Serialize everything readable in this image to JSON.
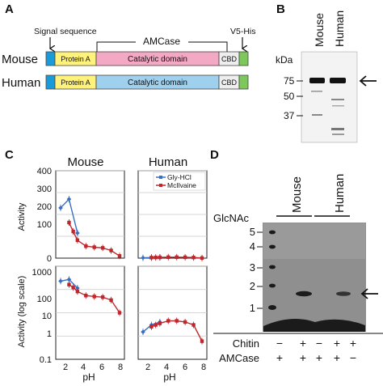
{
  "panel_labels": {
    "a": "A",
    "b": "B",
    "c": "C",
    "d": "D"
  },
  "panel_a": {
    "annotations": {
      "signal": "Signal sequence",
      "amcase": "AMCase",
      "tag": "V5-His"
    },
    "rows": [
      {
        "species": "Mouse",
        "domains": [
          "Protein A",
          "Catalytic domain",
          "CBD"
        ],
        "catalytic_color": "#f3a9c3"
      },
      {
        "species": "Human",
        "domains": [
          "Protein A",
          "Catalytic domain",
          "CBD"
        ],
        "catalytic_color": "#9fd0ee"
      }
    ],
    "colors": {
      "signal": "#1a9ad6",
      "protein_a": "#fff27a",
      "cbd": "#eeeeee",
      "tag": "#7cc85a"
    }
  },
  "panel_b": {
    "lanes": [
      "Mouse",
      "Human"
    ],
    "unit": "kDa",
    "markers": [
      "75",
      "50",
      "37"
    ],
    "arrow_at": "75"
  },
  "panel_c": {
    "columns": [
      "Mouse",
      "Human"
    ],
    "ylabel_top": "Activity",
    "ylabel_bottom": "Activity (log scale)",
    "xlabel": "pH",
    "legend": [
      "Gly-HCl",
      "McIlvaine"
    ],
    "top_yticks": [
      "0",
      "100",
      "200",
      "300",
      "400"
    ],
    "bottom_yticks": [
      "0.1",
      "1",
      "10",
      "100",
      "1000"
    ],
    "xticks": [
      "2",
      "4",
      "6",
      "8"
    ],
    "colors": {
      "gly": "#3a6fc4",
      "mcil": "#c0272d"
    }
  },
  "chart_data": [
    {
      "type": "line",
      "title": "Mouse",
      "xlabel": "pH",
      "ylabel": "Activity",
      "xlim": [
        1,
        8
      ],
      "ylim": [
        0,
        400
      ],
      "grid": true,
      "series": [
        {
          "name": "Gly-HCl",
          "x": [
            1,
            2,
            3
          ],
          "y": [
            230,
            270,
            115
          ]
        },
        {
          "name": "McIlvaine",
          "x": [
            2,
            2.5,
            3,
            4,
            5,
            6,
            7,
            8
          ],
          "y": [
            163,
            122,
            82,
            55,
            50,
            47,
            35,
            10
          ]
        }
      ]
    },
    {
      "type": "line",
      "title": "Human",
      "xlabel": "pH",
      "ylabel": "Activity",
      "xlim": [
        1,
        8
      ],
      "ylim": [
        0,
        400
      ],
      "grid": true,
      "legend": "top-right",
      "series": [
        {
          "name": "Gly-HCl",
          "x": [
            1,
            2,
            3
          ],
          "y": [
            1.5,
            3,
            4
          ]
        },
        {
          "name": "McIlvaine",
          "x": [
            2,
            2.5,
            3,
            4,
            5,
            6,
            7,
            8
          ],
          "y": [
            2.5,
            3,
            3.5,
            4.5,
            4.5,
            4,
            3,
            0.6
          ]
        }
      ]
    },
    {
      "type": "line",
      "title": "Mouse",
      "xlabel": "pH",
      "ylabel": "Activity (log scale)",
      "xlim": [
        1,
        8
      ],
      "ylim": [
        0.1,
        1000
      ],
      "log_y": true,
      "grid": true,
      "series": [
        {
          "name": "Gly-HCl",
          "x": [
            1,
            2,
            3
          ],
          "y": [
            230,
            270,
            115
          ]
        },
        {
          "name": "McIlvaine",
          "x": [
            2,
            2.5,
            3,
            4,
            5,
            6,
            7,
            8
          ],
          "y": [
            163,
            122,
            82,
            55,
            50,
            47,
            35,
            10
          ]
        }
      ]
    },
    {
      "type": "line",
      "title": "Human",
      "xlabel": "pH",
      "ylabel": "Activity (log scale)",
      "xlim": [
        1,
        8
      ],
      "ylim": [
        0.1,
        1000
      ],
      "log_y": true,
      "grid": true,
      "series": [
        {
          "name": "Gly-HCl",
          "x": [
            1,
            2,
            3
          ],
          "y": [
            1.5,
            3,
            4
          ]
        },
        {
          "name": "McIlvaine",
          "x": [
            2,
            2.5,
            3,
            4,
            5,
            6,
            7,
            8
          ],
          "y": [
            2.5,
            3,
            3.5,
            4.5,
            4.5,
            4,
            3,
            0.6
          ]
        }
      ]
    }
  ],
  "panel_d": {
    "lanes": [
      "Mouse",
      "Human"
    ],
    "unit": "GlcNAc",
    "markers": [
      "5",
      "4",
      "3",
      "2",
      "1"
    ],
    "row_labels": [
      "Chitin",
      "AMCase"
    ],
    "chitin": [
      "−",
      "+",
      "−",
      "+",
      "+"
    ],
    "amcase": [
      "+",
      "+",
      "+",
      "+",
      "−"
    ]
  }
}
